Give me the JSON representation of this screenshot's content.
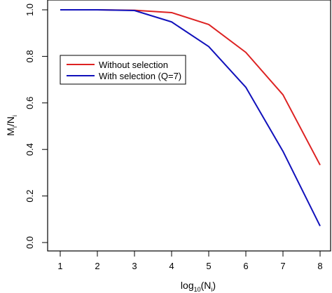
{
  "chart_data": {
    "type": "line",
    "title": "",
    "xlabel": {
      "main": "log",
      "sub": "10",
      "rest": "(N",
      "sub2": "i",
      "close": ")"
    },
    "ylabel": {
      "main": "M",
      "sub": "i",
      "mid": "/N",
      "sub2": "i"
    },
    "x": [
      1,
      2,
      3,
      4,
      5,
      6,
      7,
      8
    ],
    "xlim": [
      1,
      8
    ],
    "ylim": [
      0.0,
      1.0
    ],
    "x_ticks": [
      1,
      2,
      3,
      4,
      5,
      6,
      7,
      8
    ],
    "x_tick_labels": [
      "1",
      "2",
      "3",
      "4",
      "5",
      "6",
      "7",
      "8"
    ],
    "y_ticks": [
      0.0,
      0.2,
      0.4,
      0.6,
      0.8,
      1.0
    ],
    "y_tick_labels": [
      "0.0",
      "0.2",
      "0.4",
      "0.6",
      "0.8",
      "1.0"
    ],
    "series": [
      {
        "name": "Without selection",
        "color": "#dd2222",
        "values": [
          1.0,
          1.0,
          0.998,
          0.988,
          0.937,
          0.817,
          0.635,
          0.333
        ]
      },
      {
        "name": "With selection (Q=7)",
        "color": "#1111bb",
        "values": [
          1.0,
          1.0,
          0.997,
          0.948,
          0.842,
          0.667,
          0.392,
          0.071
        ]
      }
    ],
    "legend": {
      "placement": "upper-left inside plot",
      "box": true
    },
    "grid": false
  }
}
